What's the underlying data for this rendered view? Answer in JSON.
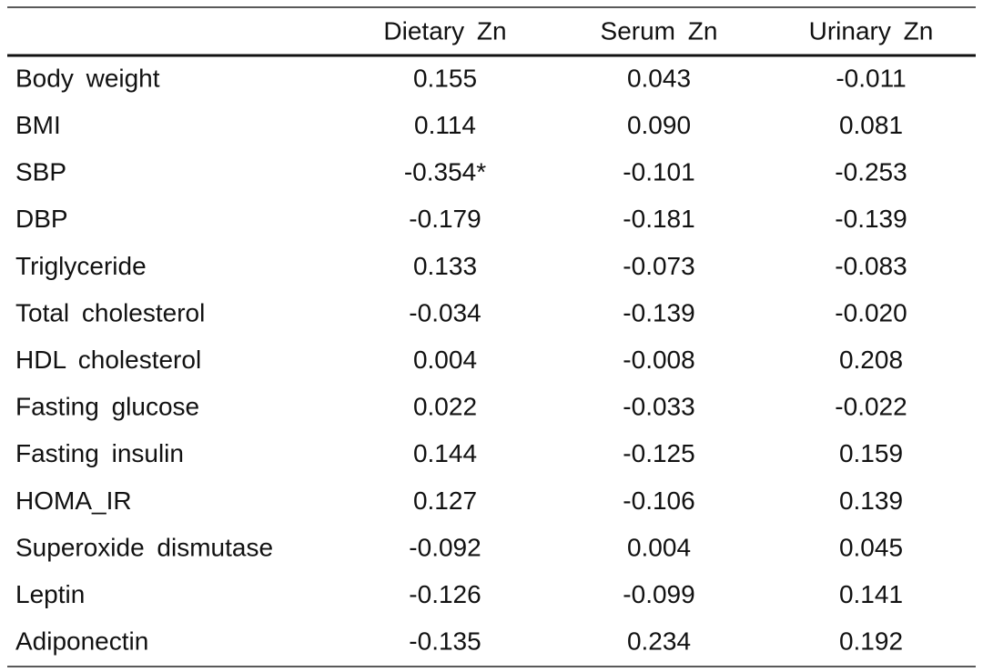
{
  "table": {
    "header": [
      "Dietary Zn",
      "Serum Zn",
      "Urinary Zn"
    ],
    "rows": [
      [
        "Body weight",
        "0.155",
        "0.043",
        "-0.011"
      ],
      [
        "BMI",
        "0.114",
        "0.090",
        "0.081"
      ],
      [
        "SBP",
        "-0.354*",
        "-0.101",
        "-0.253"
      ],
      [
        "DBP",
        "-0.179",
        "-0.181",
        "-0.139"
      ],
      [
        "Triglyceride",
        "0.133",
        "-0.073",
        "-0.083"
      ],
      [
        "Total cholesterol",
        "-0.034",
        "-0.139",
        "-0.020"
      ],
      [
        "HDL cholesterol",
        "0.004",
        "-0.008",
        "0.208"
      ],
      [
        "Fasting glucose",
        "0.022",
        "-0.033",
        "-0.022"
      ],
      [
        "Fasting insulin",
        "0.144",
        "-0.125",
        "0.159"
      ],
      [
        "HOMA_IR",
        "0.127",
        "-0.106",
        "0.139"
      ],
      [
        "Superoxide dismutase",
        "-0.092",
        "0.004",
        "0.045"
      ],
      [
        "Leptin",
        "-0.126",
        "-0.099",
        "0.141"
      ],
      [
        "Adiponectin",
        "-0.135",
        "0.234",
        "0.192"
      ]
    ]
  }
}
